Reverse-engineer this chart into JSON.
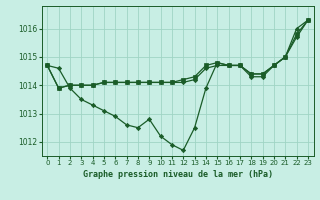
{
  "bg_color": "#c8eee4",
  "grid_color": "#a0d4c4",
  "line_color": "#1a5c28",
  "title": "Graphe pression niveau de la mer (hPa)",
  "xlim": [
    -0.5,
    23.5
  ],
  "ylim": [
    1011.5,
    1016.8
  ],
  "yticks": [
    1012,
    1013,
    1014,
    1015,
    1016
  ],
  "xticks": [
    0,
    1,
    2,
    3,
    4,
    5,
    6,
    7,
    8,
    9,
    10,
    11,
    12,
    13,
    14,
    15,
    16,
    17,
    18,
    19,
    20,
    21,
    22,
    23
  ],
  "series": [
    [
      1014.7,
      1014.6,
      1013.9,
      1013.5,
      1013.3,
      1013.1,
      1012.9,
      1012.6,
      1012.5,
      1012.8,
      1012.2,
      1011.9,
      1011.7,
      1012.5,
      1013.9,
      1014.8,
      1014.7,
      1014.7,
      1014.3,
      1014.3,
      1014.7,
      1015.0,
      1016.0,
      1016.3
    ],
    [
      1014.7,
      1013.9,
      1014.0,
      1014.0,
      1014.0,
      1014.1,
      1014.1,
      1014.1,
      1014.1,
      1014.1,
      1014.1,
      1014.1,
      1014.2,
      1014.3,
      1014.7,
      1014.8,
      1014.7,
      1014.7,
      1014.4,
      1014.4,
      1014.7,
      1015.0,
      1015.8,
      1016.3
    ],
    [
      1014.7,
      1013.9,
      1014.0,
      1014.0,
      1014.0,
      1014.1,
      1014.1,
      1014.1,
      1014.1,
      1014.1,
      1014.1,
      1014.1,
      1014.1,
      1014.2,
      1014.6,
      1014.7,
      1014.7,
      1014.7,
      1014.4,
      1014.4,
      1014.7,
      1015.0,
      1015.7,
      1016.3
    ]
  ]
}
